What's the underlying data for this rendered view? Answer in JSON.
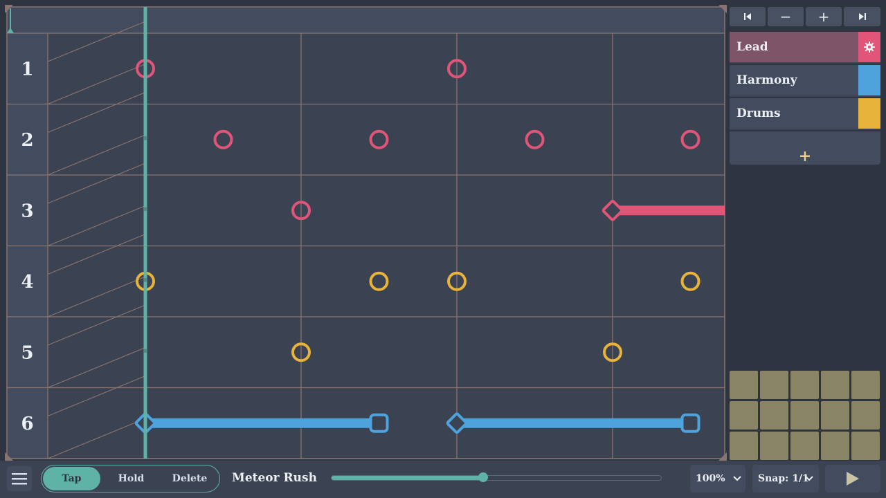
{
  "transport": {
    "first_icon": "skip-start-icon",
    "minus_label": "−",
    "plus_label": "+",
    "last_icon": "skip-end-icon"
  },
  "tracks": [
    {
      "name": "Lead",
      "color": "#e05578",
      "selected": true,
      "icon": "gear-icon"
    },
    {
      "name": "Harmony",
      "color": "#4ea3dc",
      "selected": false
    },
    {
      "name": "Drums",
      "color": "#e8b33a",
      "selected": false
    }
  ],
  "add_track_label": "+",
  "lanes": [
    "1",
    "2",
    "3",
    "4",
    "5",
    "6"
  ],
  "notes": {
    "taps": [
      {
        "lane": 1,
        "beat": 0,
        "track": "Lead"
      },
      {
        "lane": 1,
        "beat": 2,
        "track": "Lead"
      },
      {
        "lane": 2,
        "beat": 0.5,
        "track": "Lead"
      },
      {
        "lane": 2,
        "beat": 1.5,
        "track": "Lead"
      },
      {
        "lane": 2,
        "beat": 2.5,
        "track": "Lead"
      },
      {
        "lane": 2,
        "beat": 3.5,
        "track": "Lead"
      },
      {
        "lane": 3,
        "beat": 1,
        "track": "Lead"
      },
      {
        "lane": 4,
        "beat": 0,
        "track": "Drums"
      },
      {
        "lane": 4,
        "beat": 1.5,
        "track": "Drums"
      },
      {
        "lane": 4,
        "beat": 2,
        "track": "Drums"
      },
      {
        "lane": 4,
        "beat": 3.5,
        "track": "Drums"
      },
      {
        "lane": 5,
        "beat": 1,
        "track": "Drums"
      },
      {
        "lane": 5,
        "beat": 3,
        "track": "Drums"
      }
    ],
    "holds": [
      {
        "lane": 3,
        "start": 3,
        "end": 4,
        "track": "Lead",
        "end_visible": false
      },
      {
        "lane": 6,
        "start": 0,
        "end": 1.5,
        "track": "Harmony",
        "end_visible": true
      },
      {
        "lane": 6,
        "start": 2,
        "end": 3.5,
        "track": "Harmony",
        "end_visible": true
      }
    ]
  },
  "toolbar": {
    "menu_icon": "hamburger-icon",
    "modes": [
      {
        "label": "Tap",
        "active": true
      },
      {
        "label": "Hold",
        "active": false
      },
      {
        "label": "Delete",
        "active": false
      }
    ],
    "song_title": "Meteor Rush",
    "progress": 0.46,
    "zoom": "100%",
    "snap": "Snap: 1/1",
    "play_icon": "play-icon"
  },
  "colors": {
    "accent": "#5fb3a6",
    "lead": "#e05578",
    "harmony": "#4ea3dc",
    "drums": "#e8b33a",
    "gridline": "#8a7470"
  }
}
